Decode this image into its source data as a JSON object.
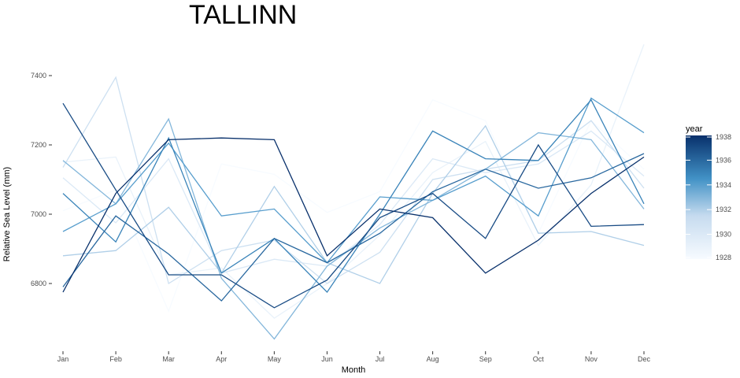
{
  "chart_data": {
    "type": "line",
    "title": "TALLINN",
    "xlabel": "Month",
    "ylabel": "Relative Sea Level (mm)",
    "categories": [
      "Jan",
      "Feb",
      "Mar",
      "Apr",
      "May",
      "Jun",
      "Jul",
      "Aug",
      "Sep",
      "Oct",
      "Nov",
      "Dec"
    ],
    "y_ticks": [
      6800,
      7000,
      7200,
      7400
    ],
    "ylim": [
      6615,
      7505
    ],
    "grid": false,
    "legend": {
      "title": "year",
      "placement": "right",
      "range": [
        1928,
        1938
      ],
      "tick_labels": [
        "1928",
        "1930",
        "1932",
        "1934",
        "1936",
        "1938"
      ],
      "color_low": "#f7fbff",
      "color_high": "#08306b"
    },
    "series": [
      {
        "year": 1928,
        "values": [
          7010,
          7070,
          6720,
          7145,
          7115,
          7005,
          7065,
          7330,
          7270,
          6945,
          7270,
          7130
        ]
      },
      {
        "year": 1929,
        "values": [
          7150,
          7165,
          6825,
          6845,
          6700,
          6800,
          6940,
          7120,
          7210,
          6910,
          7085,
          7490
        ]
      },
      {
        "year": 1930,
        "values": [
          7105,
          6975,
          7160,
          6830,
          6870,
          6850,
          6970,
          7160,
          7120,
          7145,
          7240,
          7110
        ]
      },
      {
        "year": 1931,
        "values": [
          7135,
          7395,
          6800,
          6895,
          6925,
          6800,
          6890,
          7100,
          7130,
          7155,
          7270,
          7075
        ]
      },
      {
        "year": 1932,
        "values": [
          6880,
          6895,
          7020,
          6830,
          7080,
          6860,
          6800,
          7060,
          7255,
          6945,
          6950,
          6910
        ]
      },
      {
        "year": 1933,
        "values": [
          7155,
          7030,
          7275,
          6815,
          6640,
          6850,
          6960,
          7040,
          7130,
          7235,
          7215,
          7015
        ]
      },
      {
        "year": 1934,
        "values": [
          6950,
          7030,
          7205,
          6995,
          7015,
          6860,
          7050,
          7040,
          7110,
          6995,
          7335,
          7235
        ]
      },
      {
        "year": 1935,
        "values": [
          7060,
          6920,
          7220,
          6830,
          6930,
          6775,
          7000,
          7240,
          7160,
          7155,
          7330,
          7030
        ]
      },
      {
        "year": 1936,
        "values": [
          6790,
          6995,
          6885,
          6750,
          6930,
          6860,
          6945,
          7065,
          7130,
          7075,
          7105,
          7175
        ]
      },
      {
        "year": 1937,
        "values": [
          7320,
          7070,
          6825,
          6825,
          6730,
          6810,
          6990,
          7060,
          6930,
          7200,
          6965,
          6970
        ]
      },
      {
        "year": 1938,
        "values": [
          6775,
          7060,
          7215,
          7220,
          7215,
          6880,
          7015,
          6990,
          6830,
          6925,
          7060,
          7165
        ]
      }
    ]
  }
}
